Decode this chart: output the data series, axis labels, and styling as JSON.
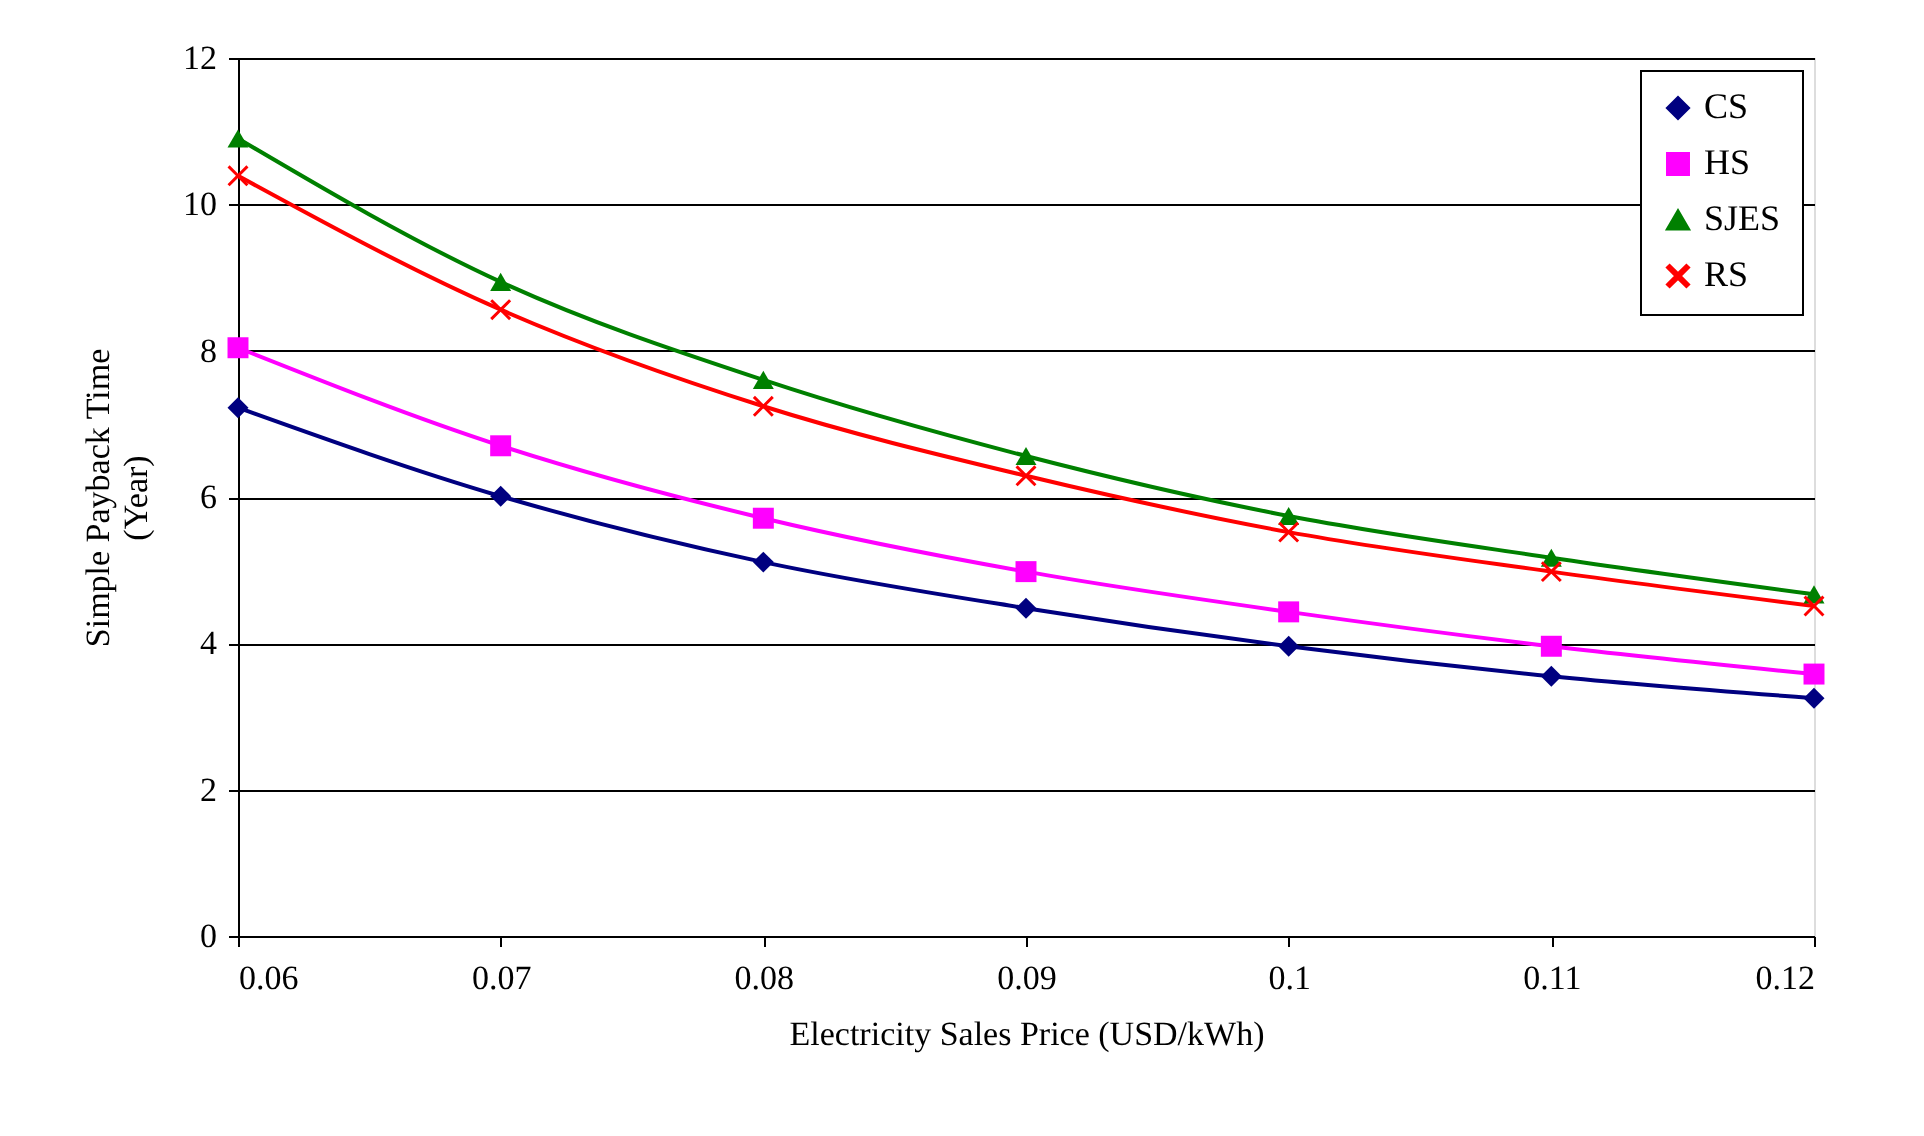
{
  "chart_data": {
    "type": "line",
    "xlabel": "Electricity Sales Price (USD/kWh)",
    "ylabel": "Simple Payback Time (Year)",
    "x": [
      0.06,
      0.07,
      0.08,
      0.09,
      0.1,
      0.11,
      0.12
    ],
    "xlim": [
      0.06,
      0.12
    ],
    "xticks": [
      0.06,
      0.07,
      0.08,
      0.09,
      0.1,
      0.11,
      0.12
    ],
    "ylim": [
      0,
      12
    ],
    "yticks": [
      0,
      2,
      4,
      6,
      8,
      10,
      12
    ],
    "grid": "y",
    "legend": "top right",
    "line_style": "solid",
    "series": [
      {
        "name": "CS",
        "color": "#000080",
        "marker": "diamond",
        "values": [
          7.22,
          6.01,
          5.11,
          4.48,
          3.96,
          3.55,
          3.25
        ]
      },
      {
        "name": "HS",
        "color": "#ff00ff",
        "marker": "square",
        "values": [
          8.04,
          6.7,
          5.71,
          4.98,
          4.43,
          3.96,
          3.58
        ]
      },
      {
        "name": "SJES",
        "color": "#008000",
        "marker": "triangle",
        "values": [
          10.9,
          8.94,
          7.6,
          6.56,
          5.74,
          5.17,
          4.67
        ]
      },
      {
        "name": "RS",
        "color": "#ff0000",
        "marker": "cross",
        "values": [
          10.39,
          8.56,
          7.24,
          6.29,
          5.52,
          4.98,
          4.51
        ]
      }
    ]
  }
}
